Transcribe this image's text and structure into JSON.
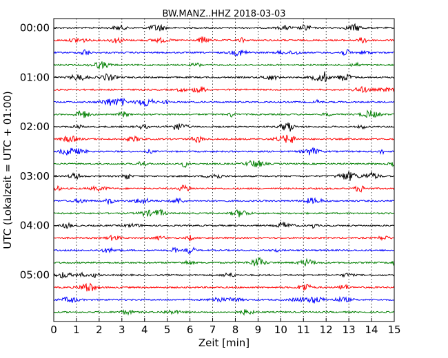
{
  "chart_data": {
    "type": "line",
    "title": "BW.MANZ..HHZ 2018-03-03",
    "xlabel": "Zeit  [min]",
    "ylabel": "UTC (Lokalzeit = UTC + 01:00)",
    "xlim": [
      0,
      15
    ],
    "x_ticks": [
      "0",
      "1",
      "2",
      "3",
      "4",
      "5",
      "6",
      "7",
      "8",
      "9",
      "10",
      "11",
      "12",
      "13",
      "14",
      "15"
    ],
    "y_ticks": [
      "00:00",
      "01:00",
      "02:00",
      "03:00",
      "04:00",
      "05:00"
    ],
    "grid": "vertical dotted at each minute",
    "trace_interval_minutes": 15,
    "trace_count": 24,
    "series_colors": [
      "#000000",
      "#ff0000",
      "#0000ff",
      "#007f00"
    ]
  }
}
